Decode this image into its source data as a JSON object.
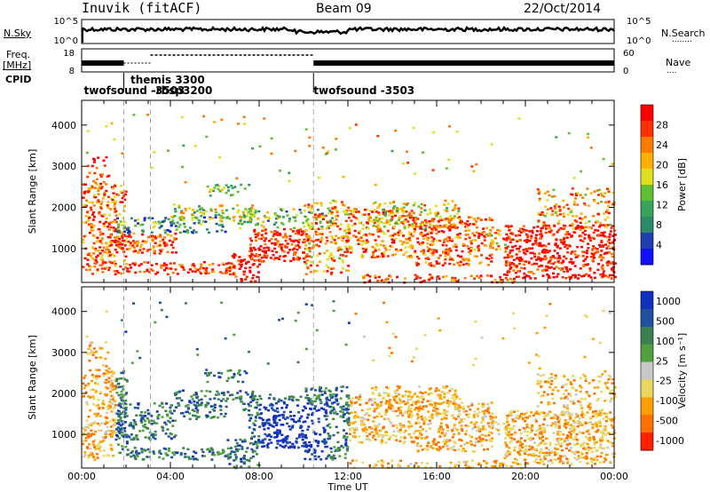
{
  "header": {
    "station": "Inuvik (fitACF)",
    "beam": "Beam 09",
    "date": "22/Oct/2014"
  },
  "left_labels": {
    "nsky": "N.Sky",
    "freq": "Freq.",
    "mhz": "[MHz]",
    "cpid": "CPID"
  },
  "right_labels": {
    "nsearch": "N.Search",
    "nsearch_dots": "........",
    "nave": "Nave",
    "nave_dots": "...."
  },
  "noise_panel": {
    "left_ticks": [
      "10^5",
      "10^0"
    ],
    "right_ticks": [
      "10^5",
      "10^0"
    ]
  },
  "freq_panel": {
    "left_ticks": [
      "18",
      "8"
    ],
    "right_ticks": [
      "60",
      "0"
    ]
  },
  "cpid_labels": [
    {
      "text": "twofsound -3503",
      "x_hours": 0.1
    },
    {
      "text": "themis 3300",
      "x_hours": 2.2
    },
    {
      "text": "-rbsp3200",
      "x_hours": 3.15
    },
    {
      "text": "twofsound -3503",
      "x_hours": 10.45
    }
  ],
  "chart_data": [
    {
      "type": "heatmap",
      "panel": "power",
      "ylabel": "Slant Range [km]",
      "yticks": [
        "1000",
        "2000",
        "3000",
        "4000"
      ],
      "ylim": [
        180,
        4600
      ],
      "xlim_hours": [
        0,
        24
      ],
      "colorbar_label": "Power [dB]",
      "colorbar_ticks": [
        "4",
        "8",
        "12",
        "16",
        "20",
        "24",
        "28"
      ],
      "colorbar_range": [
        0,
        30
      ],
      "colors": [
        "#1010ff",
        "#2040b0",
        "#2a8a6a",
        "#3aa35a",
        "#60c030",
        "#e0e020",
        "#ffb000",
        "#ff7800",
        "#ff3000",
        "#ff0000"
      ]
    },
    {
      "type": "heatmap",
      "panel": "velocity",
      "ylabel": "Slant Range [km]",
      "yticks": [
        "1000",
        "2000",
        "3000",
        "4000"
      ],
      "ylim": [
        180,
        4600
      ],
      "xlim_hours": [
        0,
        24
      ],
      "colorbar_label": "Velocity [m s⁻¹]",
      "colorbar_ticks": [
        "1000",
        "500",
        "100",
        "25",
        "-25",
        "-100",
        "-500",
        "-1000"
      ],
      "colors": [
        "#1030c0",
        "#2050a0",
        "#3a8050",
        "#50a040",
        "#c8c8c8",
        "#e8d860",
        "#ffa000",
        "#ff7000",
        "#ff2000"
      ]
    }
  ],
  "xaxis": {
    "ticks": [
      "00:00",
      "04:00",
      "08:00",
      "12:00",
      "16:00",
      "20:00",
      "00:00"
    ],
    "label": "Time UT"
  }
}
